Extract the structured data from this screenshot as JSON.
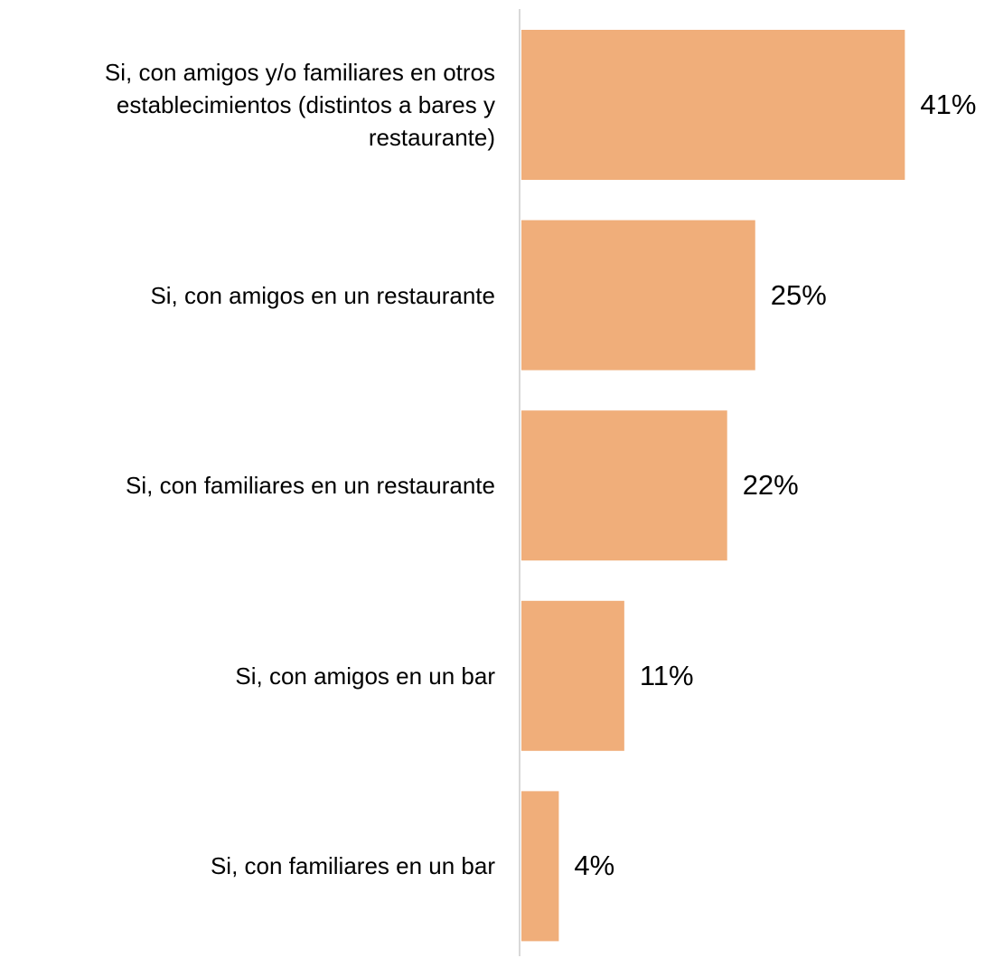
{
  "chart_data": {
    "type": "bar",
    "orientation": "horizontal",
    "categories": [
      "Si, con amigos y/o familiares en otros establecimientos (distintos a bares y restaurante)",
      "Si, con amigos en un restaurante",
      "Si, con familiares en un restaurante",
      "Si, con amigos en un bar",
      "Si, con familiares en un bar"
    ],
    "values": [
      41,
      25,
      22,
      11,
      4
    ],
    "value_labels": [
      "41%",
      "25%",
      "22%",
      "11%",
      "4%"
    ],
    "color": "#f0ae7a"
  }
}
